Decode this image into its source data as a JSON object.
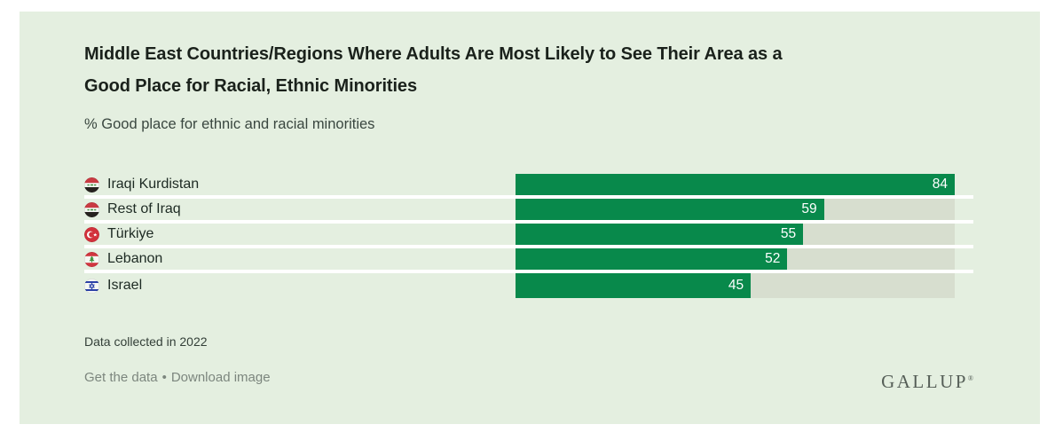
{
  "page": {
    "background": "#ffffff"
  },
  "card": {
    "background": "#e4efe0"
  },
  "header": {
    "title": "Middle East Countries/Regions Where Adults Are Most Likely to See Their Area as a Good Place for Racial, Ethnic Minorities",
    "title_lines": [
      "Middle East Countries/Regions Where Adults Are Most Likely to See Their Area as a",
      "Good Place for Racial, Ethnic Minorities"
    ],
    "subtitle": "% Good place for ethnic and racial minorities"
  },
  "chart_data": {
    "type": "bar",
    "orientation": "horizontal",
    "title": "Middle East Countries/Regions Where Adults Are Most Likely to See Their Area as a Good Place for Racial, Ethnic Minorities",
    "xlabel": "% Good place for ethnic and racial minorities",
    "categories": [
      "Iraqi Kurdistan",
      "Rest of Iraq",
      "Türkiye",
      "Lebanon",
      "Israel"
    ],
    "values": [
      84,
      59,
      55,
      52,
      45
    ],
    "flags": [
      "iraq",
      "iraq",
      "turkiye",
      "lebanon",
      "israel"
    ],
    "scale_max": 84,
    "value_labels_inside_bar": true,
    "grid": false,
    "legend": false,
    "bar_color": "#08894b",
    "track_color": "#d7decf",
    "value_label_color": "#ffffff"
  },
  "footer": {
    "note": "Data collected in 2022",
    "link_get_data": "Get the data",
    "link_separator": "•",
    "link_download": "Download image",
    "logo": "GALLUP",
    "logo_mark": "®"
  }
}
